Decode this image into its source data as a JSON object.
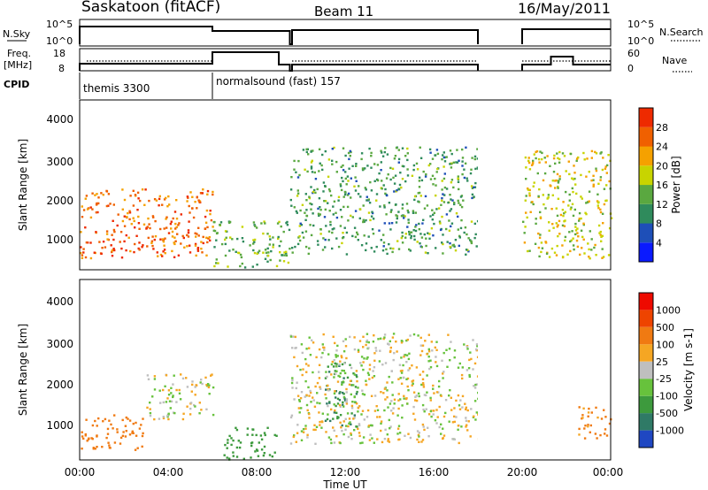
{
  "header": {
    "title": "Saskatoon (fitACF)",
    "beam": "Beam 11",
    "date": "16/May/2011"
  },
  "params": {
    "nsky_label": "N.Sky",
    "nsky_ticks": [
      "10^5",
      "10^0"
    ],
    "nsearch_label": "N.Search",
    "nsearch_ticks": [
      "10^5",
      "10^0"
    ],
    "freq_label_1": "Freq.",
    "freq_label_2": "[MHz]",
    "freq_ticks": [
      "18",
      "8"
    ],
    "nave_label": "Nave",
    "nave_ticks": [
      "60",
      "0"
    ],
    "cpid_label": "CPID",
    "cpid_modes": [
      "themis 3300",
      "normalsound (fast) 157"
    ]
  },
  "axes": {
    "ylabel": "Slant Range [km]",
    "yticks": [
      "4000",
      "3000",
      "2000",
      "1000"
    ],
    "xlabel": "Time UT",
    "xticks": [
      "00:00",
      "04:00",
      "08:00",
      "12:00",
      "16:00",
      "20:00",
      "00:00"
    ]
  },
  "colorbars": {
    "power": {
      "label": "Power [dB]",
      "ticks": [
        "28",
        "24",
        "20",
        "16",
        "12",
        "8",
        "4"
      ],
      "colors": [
        "#0a1aff",
        "#1e4fb8",
        "#2f8b5c",
        "#5aa840",
        "#c8d400",
        "#f5a100",
        "#f06000",
        "#ee2a00"
      ]
    },
    "velocity": {
      "label": "Velocity [m s-1]",
      "ticks": [
        "1000",
        "500",
        "100",
        "25",
        "-25",
        "-100",
        "-500",
        "-1000"
      ],
      "colors": [
        "#1f47c2",
        "#2f7a66",
        "#3d9a3d",
        "#67c23c",
        "#bfbfbf",
        "#f5a623",
        "#f07a12",
        "#ee4400",
        "#ee0a00"
      ]
    }
  },
  "chart_data": {
    "type": "heatmap",
    "x_range_hours": [
      0,
      24
    ],
    "y_range_km": [
      180,
      4600
    ],
    "data_gaps_hours": [
      [
        18.0,
        20.0
      ]
    ],
    "mode_change_hour": 6.0,
    "power_scatter_bands": [
      {
        "t0": 0.0,
        "t1": 6.0,
        "r0": 500,
        "r1": 2300,
        "power_db": 26
      },
      {
        "t0": 6.0,
        "t1": 9.5,
        "r0": 250,
        "r1": 1500,
        "power_db": 14
      },
      {
        "t0": 9.5,
        "t1": 18.0,
        "r0": 600,
        "r1": 3400,
        "power_db": 12
      },
      {
        "t0": 20.0,
        "t1": 24.0,
        "r0": 500,
        "r1": 3300,
        "power_db": 18
      }
    ],
    "velocity_scatter_bands": [
      {
        "t0": 0.0,
        "t1": 3.0,
        "r0": 450,
        "r1": 1300,
        "velocity": 300
      },
      {
        "t0": 3.0,
        "t1": 6.0,
        "r0": 1200,
        "r1": 2300,
        "velocity": 0
      },
      {
        "t0": 6.5,
        "t1": 9.0,
        "r0": 200,
        "r1": 1000,
        "velocity": -300
      },
      {
        "t0": 11.0,
        "t1": 12.5,
        "r0": 1000,
        "r1": 2600,
        "velocity": -500
      },
      {
        "t0": 9.5,
        "t1": 18.0,
        "r0": 600,
        "r1": 3300,
        "velocity": 0
      },
      {
        "t0": 22.5,
        "t1": 24.0,
        "r0": 700,
        "r1": 1500,
        "velocity": 150
      }
    ]
  }
}
